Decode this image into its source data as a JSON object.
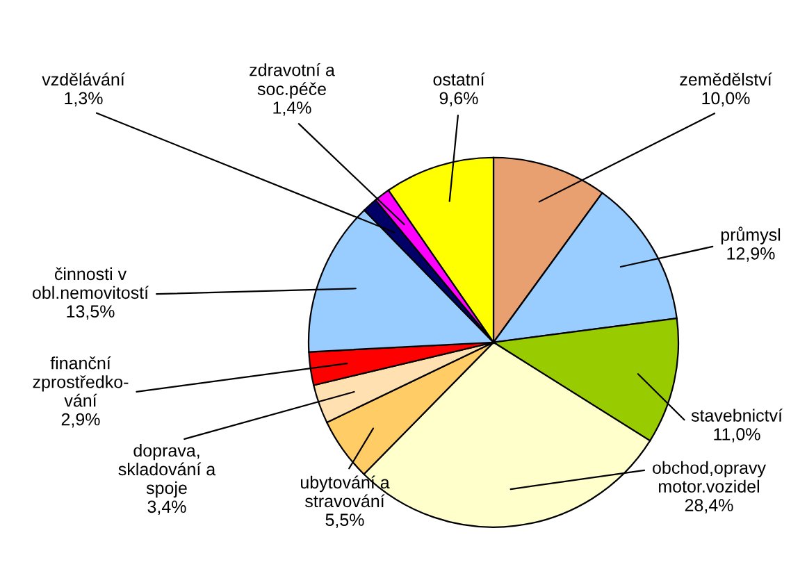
{
  "chart_data": {
    "type": "pie",
    "categories": [
      "zemědělství",
      "průmysl",
      "stavebnictví",
      "obchod,opravy\nmotor.vozidel",
      "ubytování a\nstravování",
      "doprava,\nskladování a\nspoje",
      "finanční\nzprostředko-\nvání",
      "činnosti v\nobl.nemovitostí",
      "vzdělávání",
      "zdravotní a\nsoc.péče",
      "ostatní"
    ],
    "values": [
      10.0,
      12.9,
      11.0,
      28.4,
      5.5,
      3.4,
      2.9,
      13.5,
      1.3,
      1.4,
      9.6
    ],
    "value_labels": [
      "10,0%",
      "12,9%",
      "11,0%",
      "28,4%",
      "5,5%",
      "3,4%",
      "2,9%",
      "13,5%",
      "1,3%",
      "1,4%",
      "9,6%"
    ],
    "colors": [
      "#e8a070",
      "#99ccff",
      "#99cc00",
      "#ffffcc",
      "#ffcc66",
      "#ffe0b0",
      "#ff0000",
      "#99ccff",
      "#000066",
      "#ff00ff",
      "#ffff00"
    ],
    "legend": false
  }
}
